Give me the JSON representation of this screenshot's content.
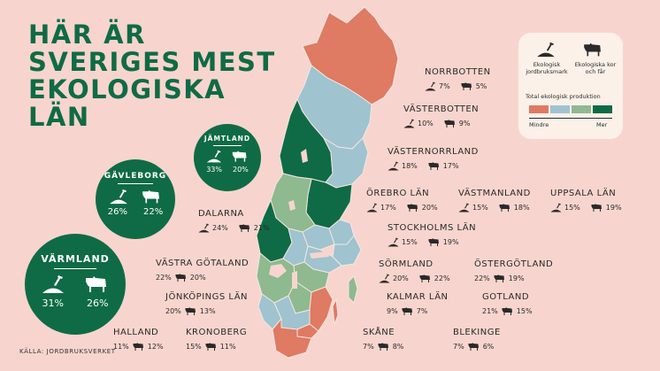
{
  "title_lines": [
    "HÄR ÄR",
    "SVERIGES MEST",
    "EKOLOGISKA",
    "LÄN"
  ],
  "source": "KÄLLA: JORDBRUKSVERKET",
  "colors": {
    "background": "#f7d5ce",
    "level1": "#df7a63",
    "level2": "#9fc3cf",
    "level3": "#8fb98f",
    "level4": "#0f6b45"
  },
  "legend": {
    "farmland_label": "Ekologisk jordbruksmark",
    "livestock_label": "Ekologiska kor och får",
    "scale_title": "Total ekologisk produktion",
    "less": "Mindre",
    "more": "Mer",
    "scale_colors": [
      "#df7a63",
      "#9fc3cf",
      "#8fb98f",
      "#0f6b45"
    ]
  },
  "highlights": [
    {
      "name": "VÄRMLAND",
      "farmland": "31%",
      "livestock": "26%"
    },
    {
      "name": "GÄVLEBORG",
      "farmland": "26%",
      "livestock": "22%"
    },
    {
      "name": "JÄMTLAND",
      "farmland": "33%",
      "livestock": "20%"
    }
  ],
  "counties": [
    {
      "name": "NORRBOTTEN",
      "farmland": "7%",
      "livestock": "5%"
    },
    {
      "name": "VÄSTERBOTTEN",
      "farmland": "10%",
      "livestock": "9%"
    },
    {
      "name": "VÄSTERNORRLAND",
      "farmland": "18%",
      "livestock": "17%"
    },
    {
      "name": "DALARNA",
      "farmland": "24%",
      "livestock": "21%"
    },
    {
      "name": "ÖREBRO LÄN",
      "farmland": "17%",
      "livestock": "20%"
    },
    {
      "name": "VÄSTMANLAND",
      "farmland": "15%",
      "livestock": "18%"
    },
    {
      "name": "UPPSALA LÄN",
      "farmland": "15%",
      "livestock": "19%"
    },
    {
      "name": "STOCKHOLMS LÄN",
      "farmland": "15%",
      "livestock": "19%"
    },
    {
      "name": "VÄSTRA GÖTALAND",
      "farmland": "22%",
      "livestock": "20%"
    },
    {
      "name": "SÖRMLAND",
      "farmland": "20%",
      "livestock": "22%"
    },
    {
      "name": "ÖSTERGÖTLAND",
      "farmland": "22%",
      "livestock": "19%"
    },
    {
      "name": "JÖNKÖPINGS LÄN",
      "farmland": "20%",
      "livestock": "13%"
    },
    {
      "name": "KALMAR LÄN",
      "farmland": "9%",
      "livestock": "7%"
    },
    {
      "name": "GOTLAND",
      "farmland": "21%",
      "livestock": "15%"
    },
    {
      "name": "HALLAND",
      "farmland": "11%",
      "livestock": "12%"
    },
    {
      "name": "KRONOBERG",
      "farmland": "15%",
      "livestock": "11%"
    },
    {
      "name": "SKÅNE",
      "farmland": "7%",
      "livestock": "8%"
    },
    {
      "name": "BLEKINGE",
      "farmland": "7%",
      "livestock": "6%"
    }
  ]
}
